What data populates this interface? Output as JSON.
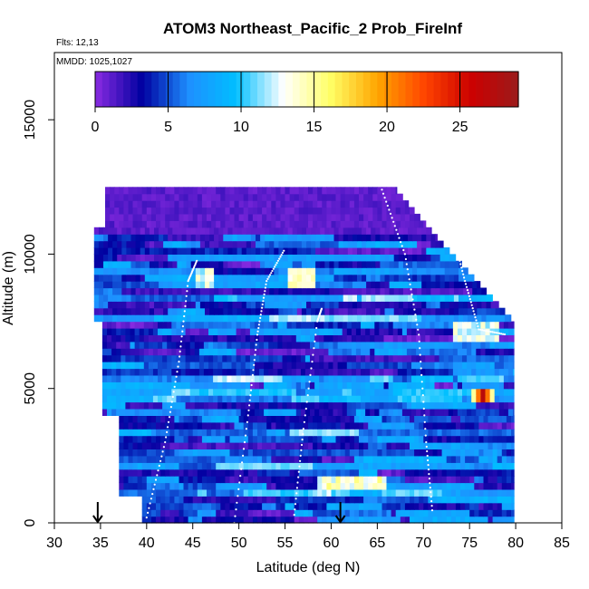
{
  "chart_data": {
    "type": "heatmap",
    "title": "ATOM3 Northeast_Pacific_2 Prob_FireInf",
    "flights_label": "Flts: 12,13",
    "dates_label": "MMDD: 1025,1027",
    "xlabel": "Latitude (deg N)",
    "ylabel": "Altitude (m)",
    "xlim": [
      30,
      85
    ],
    "ylim": [
      0,
      17500
    ],
    "x_ticks": [
      "30",
      "35",
      "40",
      "45",
      "50",
      "55",
      "60",
      "65",
      "70",
      "75",
      "80",
      "85"
    ],
    "y_ticks": [
      "0",
      "5000",
      "10000",
      "15000"
    ],
    "colorbar": {
      "ticks": [
        "0",
        "5",
        "10",
        "15",
        "20",
        "25"
      ],
      "range": [
        0,
        29
      ],
      "colors": [
        "#8a2be2",
        "#0000a0",
        "#1e90ff",
        "#00bfff",
        "#ffffff",
        "#ffff66",
        "#ffa500",
        "#ff4500",
        "#cc0000",
        "#9b1b1b"
      ]
    },
    "arrows_lat": [
      34.7,
      61.0
    ],
    "hotspot": {
      "lat": 76.2,
      "alt": 4750,
      "value": 27
    },
    "grid": false,
    "legend": "colorbar top"
  }
}
